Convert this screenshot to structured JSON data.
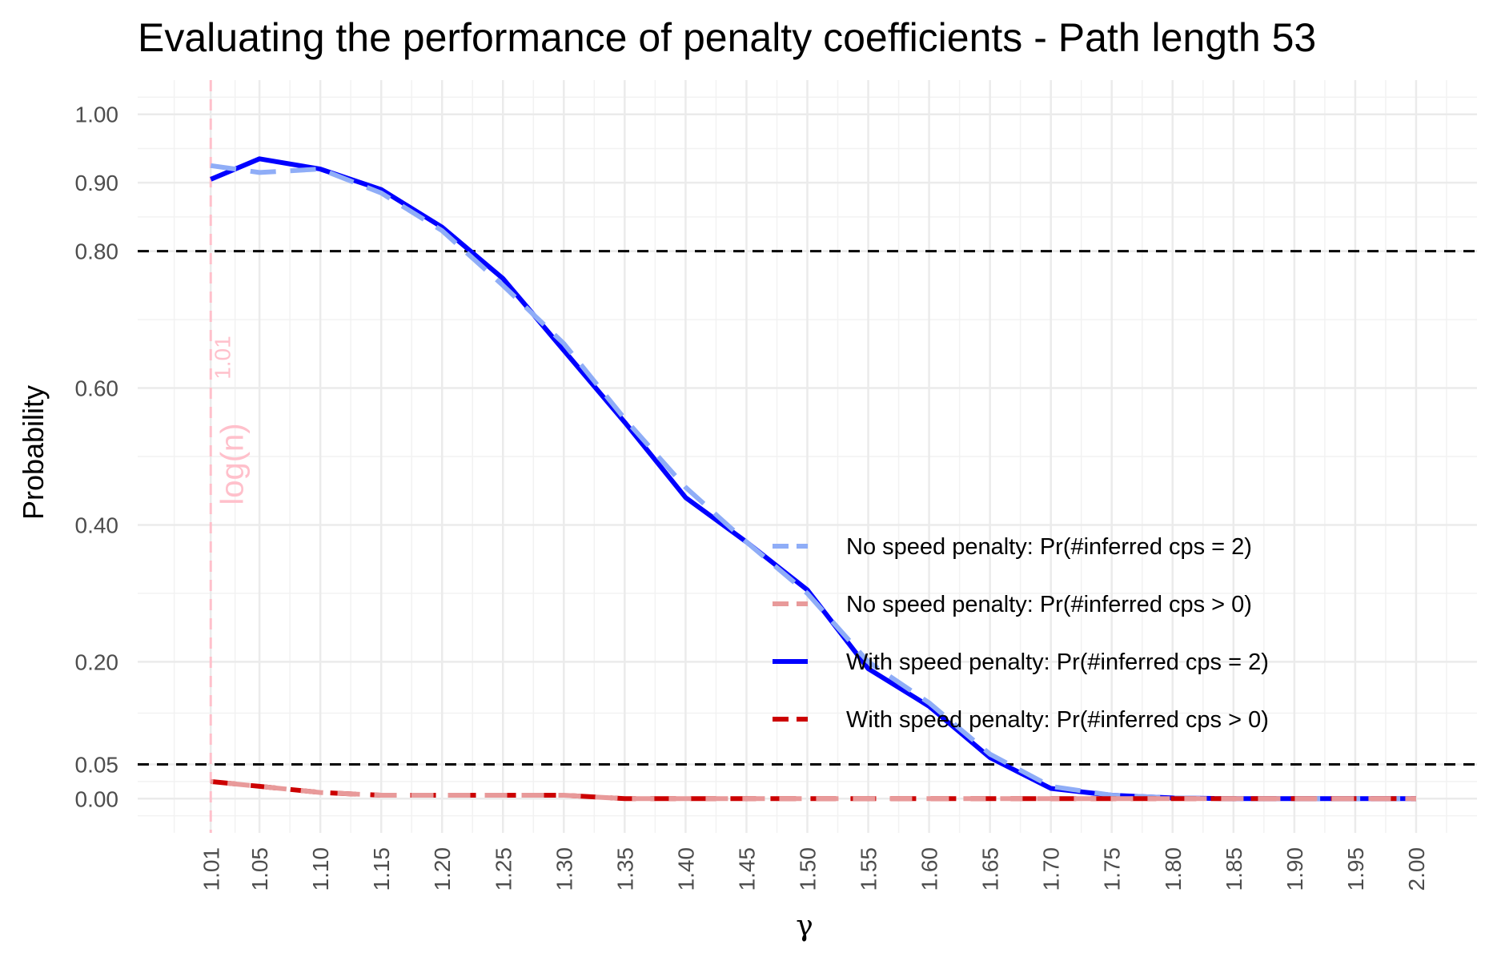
{
  "chart_data": {
    "type": "line",
    "title": "Evaluating the performance of penalty coefficients - Path length 53",
    "xlabel": "γ",
    "ylabel": "Probability",
    "x_ticks": [
      1.01,
      1.05,
      1.1,
      1.15,
      1.2,
      1.25,
      1.3,
      1.35,
      1.4,
      1.45,
      1.5,
      1.55,
      1.6,
      1.65,
      1.7,
      1.75,
      1.8,
      1.85,
      1.9,
      1.95,
      2.0
    ],
    "x_tick_labels": [
      "1.01",
      "1.05",
      "1.10",
      "1.15",
      "1.20",
      "1.25",
      "1.30",
      "1.35",
      "1.40",
      "1.45",
      "1.50",
      "1.55",
      "1.60",
      "1.65",
      "1.70",
      "1.75",
      "1.80",
      "1.85",
      "1.90",
      "1.95",
      "2.00"
    ],
    "y_ticks": [
      0.0,
      0.05,
      0.2,
      0.4,
      0.6,
      0.8,
      0.9,
      1.0
    ],
    "y_tick_labels": [
      "0.00",
      "0.05",
      "0.20",
      "0.40",
      "0.60",
      "0.80",
      "0.90",
      "1.00"
    ],
    "xlim": [
      0.95,
      2.05
    ],
    "ylim": [
      -0.05,
      1.05
    ],
    "grid": true,
    "legend_position": "bottom-right inside",
    "x": [
      1.01,
      1.05,
      1.1,
      1.15,
      1.2,
      1.25,
      1.3,
      1.35,
      1.4,
      1.45,
      1.5,
      1.55,
      1.6,
      1.65,
      1.7,
      1.75,
      1.8,
      1.85,
      1.9,
      1.95,
      2.0
    ],
    "series": [
      {
        "name": "No speed penalty: Pr(#inferred cps = 2)",
        "color": "#8fadf7",
        "dash": "dashed",
        "values": [
          0.925,
          0.915,
          0.92,
          0.885,
          0.83,
          0.75,
          0.665,
          0.555,
          0.455,
          0.375,
          0.3,
          0.2,
          0.14,
          0.065,
          0.018,
          0.005,
          0.001,
          0.0,
          0.0,
          0.0,
          0.0
        ]
      },
      {
        "name": "No speed penalty: Pr(#inferred cps > 0)",
        "color": "#e89a9a",
        "dash": "dashed",
        "values": [
          0.025,
          0.018,
          0.009,
          0.005,
          0.005,
          0.005,
          0.005,
          0.0,
          0.0,
          0.0,
          0.0,
          0.0,
          0.0,
          0.0,
          0.0,
          0.0,
          0.0,
          0.0,
          0.0,
          0.0,
          0.0
        ]
      },
      {
        "name": "With speed penalty: Pr(#inferred cps = 2)",
        "color": "#0000ff",
        "dash": "solid",
        "values": [
          0.905,
          0.935,
          0.92,
          0.89,
          0.835,
          0.76,
          0.655,
          0.55,
          0.44,
          0.375,
          0.305,
          0.19,
          0.135,
          0.06,
          0.015,
          0.005,
          0.001,
          0.0,
          0.0,
          0.0,
          0.0
        ]
      },
      {
        "name": "With speed penalty: Pr(#inferred cps > 0)",
        "color": "#cc0000",
        "dash": "dashed",
        "values": [
          0.025,
          0.018,
          0.009,
          0.005,
          0.005,
          0.005,
          0.005,
          0.0,
          0.0,
          0.0,
          0.0,
          0.0,
          0.0,
          0.0,
          0.0,
          0.0,
          0.0,
          0.0,
          0.0,
          0.0,
          0.0
        ]
      }
    ],
    "reference_lines": [
      {
        "axis": "y",
        "value": 0.8,
        "style": "dashed",
        "color": "#000000"
      },
      {
        "axis": "y",
        "value": 0.05,
        "style": "dashed",
        "color": "#000000"
      },
      {
        "axis": "x",
        "value": 1.01,
        "style": "dashed",
        "color": "#ffc0cb"
      }
    ],
    "annotation": {
      "text": "log(n)",
      "superscript": "1.01",
      "color": "#ffc0cb",
      "x": 1.01,
      "y": 0.6,
      "rotation": "vertical"
    }
  }
}
